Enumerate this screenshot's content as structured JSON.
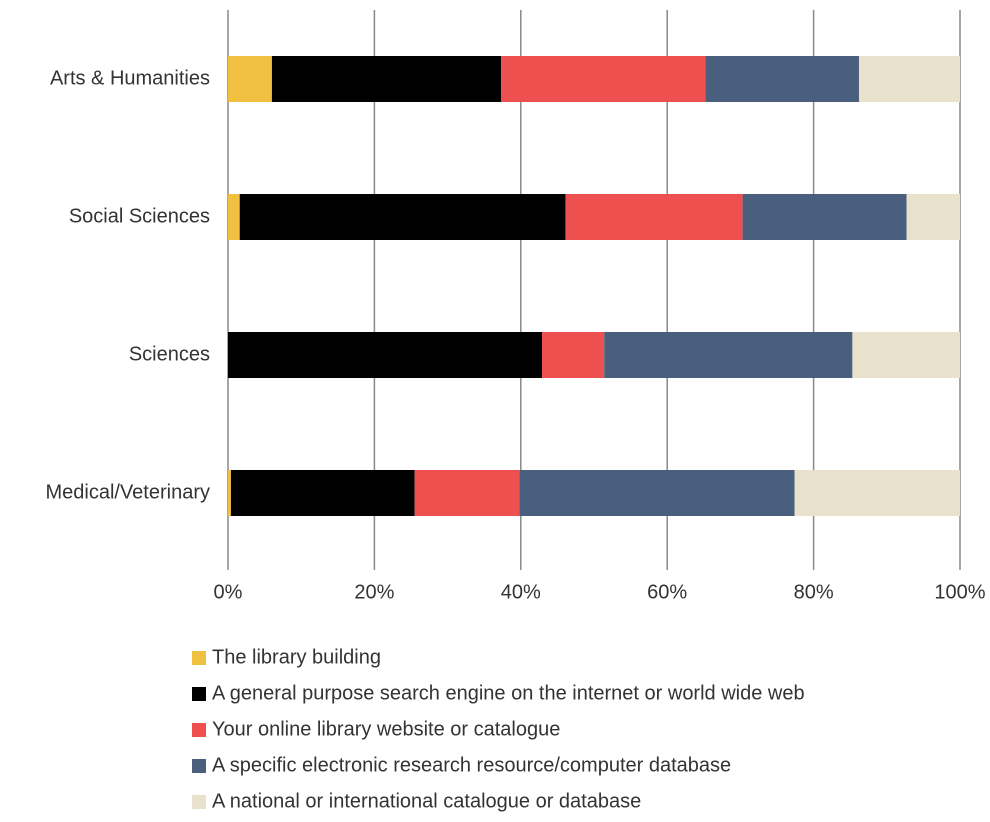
{
  "chart_data": {
    "type": "stacked-bar-horizontal",
    "categories": [
      "Arts & Humanities",
      "Social Sciences",
      "Sciences",
      "Medical/Veterinary"
    ],
    "series": [
      {
        "name": "The library building",
        "color": "#f0c040",
        "values": [
          6.0,
          1.6,
          0,
          0.4
        ]
      },
      {
        "name": "A general purpose search engine on the internet or world wide web",
        "color": "#000000",
        "values": [
          31.3,
          44.5,
          42.9,
          25.1
        ]
      },
      {
        "name": "Your online library website or catalogue",
        "color": "#ee5050",
        "values": [
          27.9,
          24.2,
          8.5,
          14.3
        ]
      },
      {
        "name": "A specific electronic research resource/computer database",
        "color": "#4a5f7e",
        "values": [
          21.0,
          22.4,
          33.9,
          37.6
        ]
      },
      {
        "name": "A national or international catalogue or database",
        "color": "#e8e2cc",
        "values": [
          13.8,
          7.3,
          14.7,
          22.6
        ]
      }
    ],
    "xlim": [
      0,
      100
    ],
    "xticks": [
      {
        "value": 0,
        "label": "0%"
      },
      {
        "value": 20,
        "label": "20%"
      },
      {
        "value": 40,
        "label": "40%"
      },
      {
        "value": 60,
        "label": "60%"
      },
      {
        "value": 80,
        "label": "80%"
      },
      {
        "value": 100,
        "label": "100%"
      }
    ],
    "grid": true,
    "legend": "bottom"
  }
}
